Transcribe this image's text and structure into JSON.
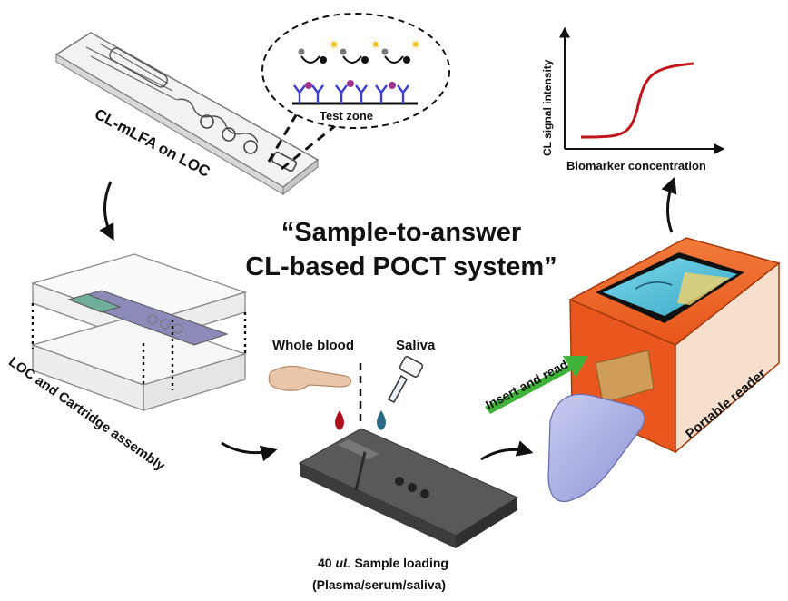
{
  "title": {
    "line1": "“Sample-to-answer",
    "line2": "CL-based POCT system”"
  },
  "labels": {
    "chip": "CL-mLFA on LOC",
    "test_zone": "Test zone",
    "y_axis": "CL signal intensity",
    "x_axis": "Biomarker concentration",
    "assembly": "LOC and Cartridge assembly",
    "whole_blood": "Whole blood",
    "saliva": "Saliva",
    "insert_read": "Insert and read",
    "reader": "Portable reader",
    "sample_volume": "40",
    "sample_unit": "uL",
    "sample_loading": "Sample loading",
    "sample_types": "(Plasma/serum/saliva)"
  },
  "colors": {
    "curve": "#c0161b",
    "reader_body": "#e9571f",
    "insert_arrow": "#3fb339",
    "blood_drop": "#b00f1c",
    "saliva_drop": "#2a6a86"
  },
  "icons": [
    "blood-drop-icon",
    "saliva-drop-icon"
  ]
}
